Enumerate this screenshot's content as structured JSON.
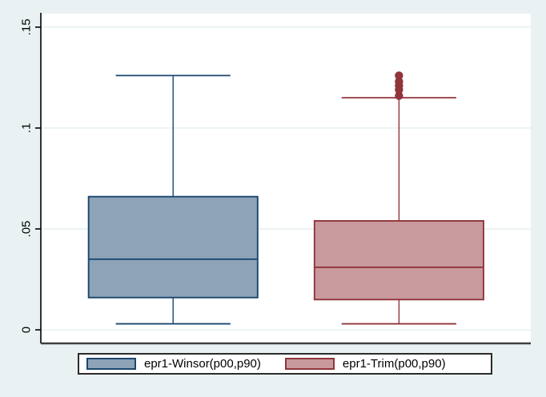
{
  "figure": {
    "background_color": "#eaf1f2",
    "plot_background": "#ffffff",
    "grid_color": "#e4eff1",
    "axis_color": "#000000",
    "baseline_color": "#404040",
    "tick_label_color": "#000000"
  },
  "chart_data": {
    "type": "box",
    "orientation": "vertical",
    "title": "",
    "xlabel": "",
    "ylabel": "",
    "grid": true,
    "legend_position": "bottom",
    "ylim": [
      -0.0067,
      0.1567
    ],
    "yticks": [
      {
        "value": 0,
        "label": "0"
      },
      {
        "value": 0.05,
        "label": ".05"
      },
      {
        "value": 0.1,
        "label": ".1"
      },
      {
        "value": 0.15,
        "label": ".15"
      }
    ],
    "series": [
      {
        "name": "epr1-Winsor(p00,p90)",
        "center_frac": 0.27,
        "box_width_frac": 0.345,
        "whisker_width_frac": 0.234,
        "lower_adjacent": 0.003,
        "q1": 0.016,
        "median": 0.035,
        "q3": 0.066,
        "upper_adjacent": 0.126,
        "outliers": [],
        "fill_color": "#8da3b7",
        "line_color": "#1a476f"
      },
      {
        "name": "epr1-Trim(p00,p90)",
        "center_frac": 0.731,
        "box_width_frac": 0.345,
        "whisker_width_frac": 0.234,
        "lower_adjacent": 0.003,
        "q1": 0.015,
        "median": 0.031,
        "q3": 0.054,
        "upper_adjacent": 0.115,
        "outliers": [
          0.116,
          0.119,
          0.121,
          0.123,
          0.126
        ],
        "fill_color": "#c89a9d",
        "line_color": "#90353b"
      }
    ]
  }
}
